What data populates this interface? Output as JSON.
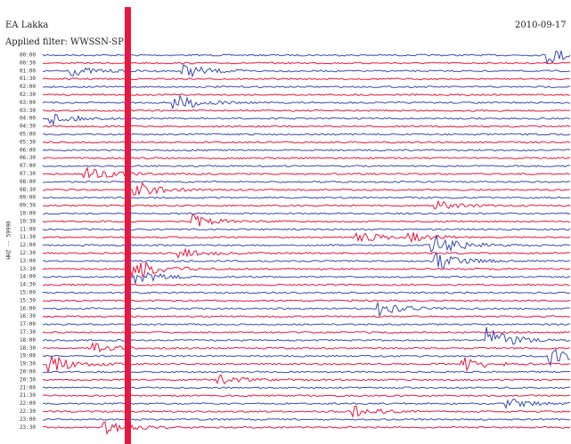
{
  "header": {
    "station": "EA Lakka",
    "filter": "Applied filter: WWSSN-SP",
    "date": "2010-09-17"
  },
  "channel_label": "HHZ -- 59990",
  "rows": [
    "00:00",
    "00:30",
    "01:00",
    "01:30",
    "02:00",
    "02:30",
    "03:00",
    "03:30",
    "04:00",
    "04:30",
    "05:00",
    "05:30",
    "06:00",
    "06:30",
    "07:00",
    "07:30",
    "08:00",
    "08:30",
    "09:00",
    "09:30",
    "10:00",
    "10:30",
    "11:00",
    "11:30",
    "12:00",
    "12:30",
    "13:00",
    "13:30",
    "14:00",
    "14:30",
    "15:00",
    "15:30",
    "16:00",
    "16:30",
    "17:00",
    "17:30",
    "18:00",
    "18:30",
    "19:00",
    "19:30",
    "20:00",
    "20:30",
    "21:00",
    "21:30",
    "22:00",
    "22:30",
    "23:00",
    "23:30"
  ]
}
